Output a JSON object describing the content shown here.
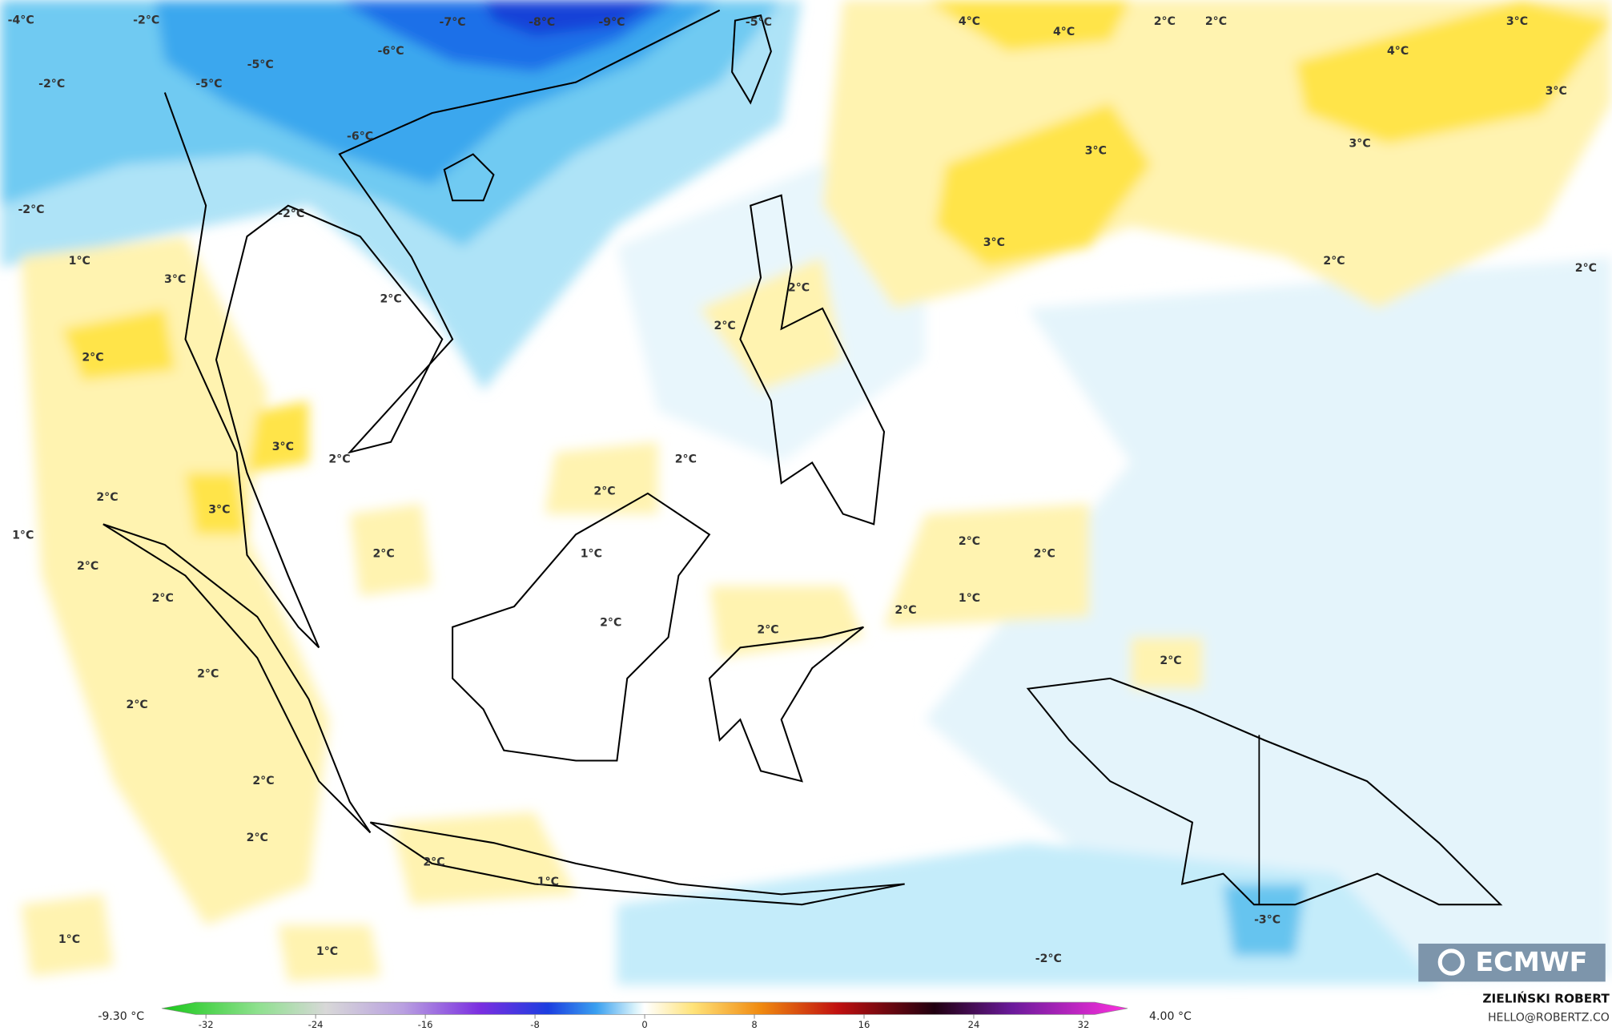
{
  "map": {
    "contour_labels": [
      "-4°C",
      "-2°C",
      "-7°C",
      "-8°C",
      "-9°C",
      "-5°C",
      "-6°C",
      "-5°C",
      "-2°C",
      "-5°C",
      "-6°C",
      "-2°C",
      "-2°C",
      "1°C",
      "3°C",
      "2°C",
      "2°C",
      "3°C",
      "2°C",
      "2°C",
      "3°C",
      "1°C",
      "2°C",
      "2°C",
      "1°C",
      "2°C",
      "2°C",
      "2°C",
      "2°C",
      "2°C",
      "2°C",
      "2°C",
      "2°C",
      "2°C",
      "2°C",
      "2°C",
      "2°C",
      "1°C",
      "1°C",
      "1°C",
      "2°C",
      "2°C",
      "1°C",
      "2°C",
      "2°C",
      "-3°C",
      "-2°C",
      "4°C",
      "4°C",
      "2°C",
      "2°C",
      "3°C",
      "4°C",
      "3°C",
      "3°C",
      "3°C",
      "3°C",
      "2°C",
      "2°C"
    ]
  },
  "colorbar": {
    "min_label": "-9.30 °C",
    "max_label": "4.00 °C",
    "ticks": [
      -32,
      -24,
      -16,
      -8,
      0,
      8,
      16,
      24,
      32
    ]
  },
  "credits": {
    "author": "ZIELIŃSKI ROBERT",
    "contact": "HELLO@ROBERTZ.CO",
    "logo": "ECMWF"
  }
}
